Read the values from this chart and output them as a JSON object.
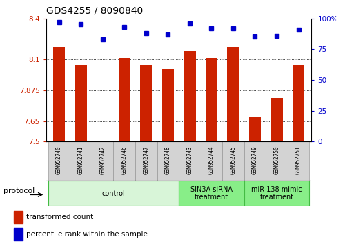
{
  "title": "GDS4255 / 8090840",
  "samples": [
    "GSM952740",
    "GSM952741",
    "GSM952742",
    "GSM952746",
    "GSM952747",
    "GSM952748",
    "GSM952743",
    "GSM952744",
    "GSM952745",
    "GSM952749",
    "GSM952750",
    "GSM952751"
  ],
  "red_values": [
    8.19,
    8.06,
    7.505,
    8.11,
    8.06,
    8.03,
    8.16,
    8.11,
    8.19,
    7.68,
    7.82,
    8.06
  ],
  "blue_values": [
    97,
    95,
    83,
    93,
    88,
    87,
    96,
    92,
    92,
    85,
    86,
    91
  ],
  "ylim_left": [
    7.5,
    8.4
  ],
  "ylim_right": [
    0,
    100
  ],
  "yticks_left": [
    7.5,
    7.65,
    7.875,
    8.1,
    8.4
  ],
  "ytick_labels_left": [
    "7.5",
    "7.65",
    "7.875",
    "8.1",
    "8.4"
  ],
  "yticks_right": [
    0,
    25,
    50,
    75,
    100
  ],
  "ytick_labels_right": [
    "0",
    "25",
    "50",
    "75",
    "100%"
  ],
  "bar_color": "#cc2200",
  "dot_color": "#0000cc",
  "grid_color": "#000000",
  "bg_color": "#ffffff",
  "protocol_groups": [
    {
      "label": "control",
      "start": 0,
      "end": 5,
      "color": "#d8f5d8"
    },
    {
      "label": "SIN3A siRNA\ntreatment",
      "start": 6,
      "end": 8,
      "color": "#88ee88"
    },
    {
      "label": "miR-138 mimic\ntreatment",
      "start": 9,
      "end": 11,
      "color": "#88ee88"
    }
  ],
  "legend_red_label": "transformed count",
  "legend_blue_label": "percentile rank within the sample",
  "protocol_label": "protocol",
  "title_fontsize": 10,
  "tick_fontsize": 7.5,
  "label_fontsize": 8,
  "sample_fontsize": 5.5
}
